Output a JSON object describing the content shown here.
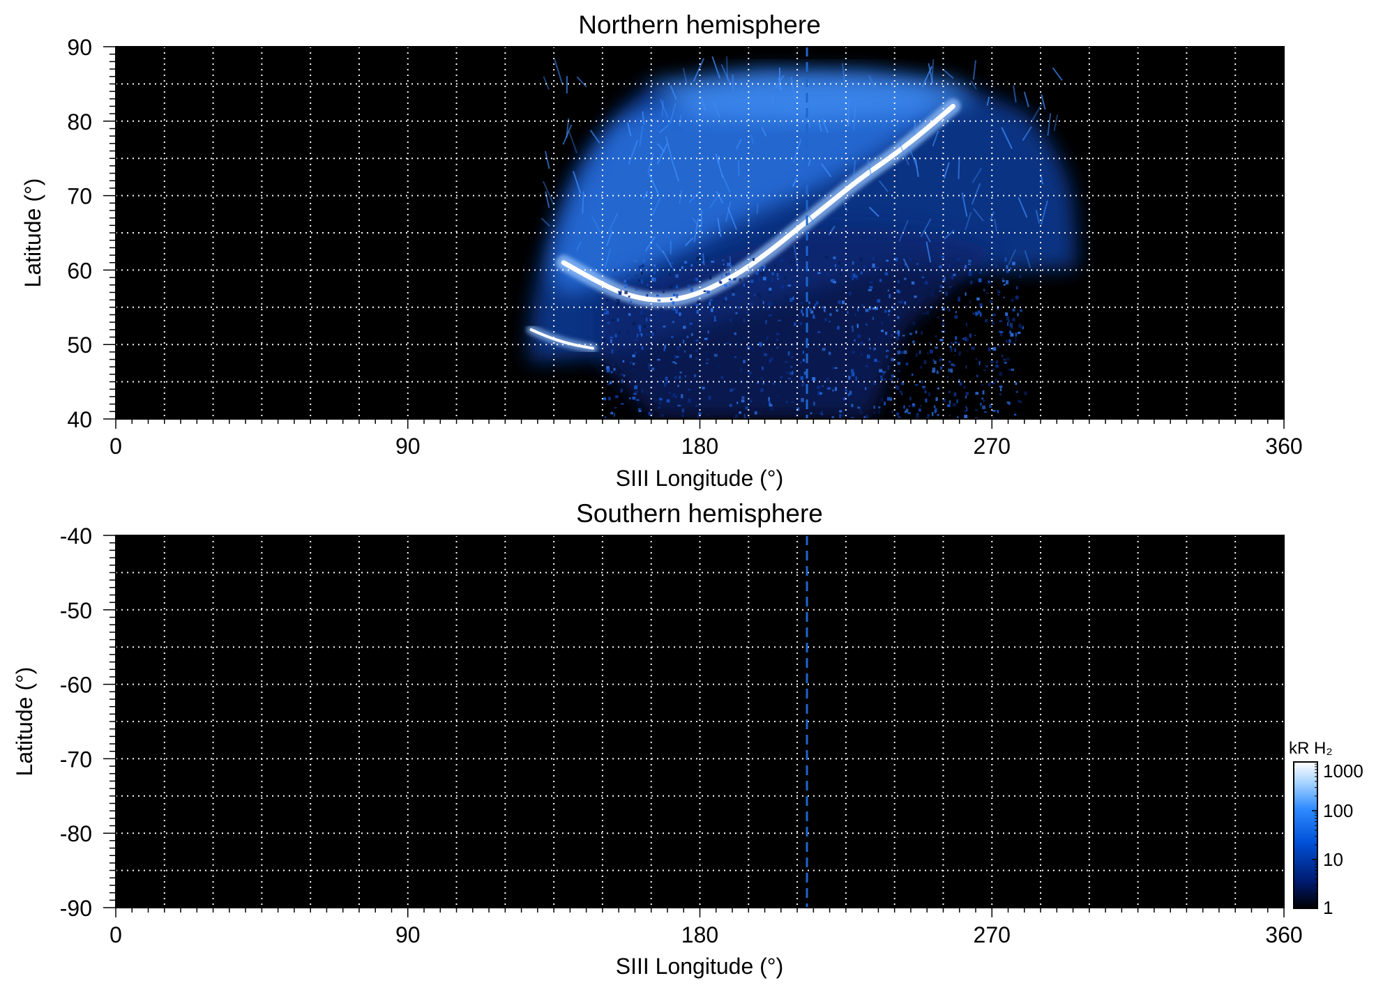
{
  "chart_data": [
    {
      "type": "heatmap",
      "title": "Northern hemisphere",
      "xlabel": "SIII Longitude (°)",
      "ylabel": "Latitude (°)",
      "xlim": [
        0,
        360
      ],
      "ylim": [
        40,
        90
      ],
      "xticks": [
        0,
        90,
        180,
        270,
        360
      ],
      "xtick_labels": [
        "0",
        "90",
        "180",
        "270",
        "360"
      ],
      "yticks": [
        90,
        80,
        70,
        60,
        50,
        40
      ],
      "ytick_labels": [
        "90",
        "80",
        "70",
        "60",
        "50",
        "40"
      ],
      "grid": true,
      "grid_x_step_deg": 15,
      "grid_y_step_deg": 5,
      "reference_line": {
        "type": "vertical-dashed",
        "x": 213,
        "color": "#1f66cc"
      },
      "coverage": {
        "description": "Polar-projected emission; region outside coverage is black",
        "lon_range": [
          127,
          295
        ],
        "lat_range": [
          40,
          87
        ]
      },
      "main_oval": [
        [
          128,
          52
        ],
        [
          132,
          51.2
        ],
        [
          138,
          50.3
        ],
        [
          143,
          49.8
        ],
        [
          147,
          49.5
        ],
        [
          138,
          61
        ],
        [
          148,
          58.5
        ],
        [
          158,
          56.5
        ],
        [
          168,
          55.8
        ],
        [
          178,
          56.5
        ],
        [
          190,
          59
        ],
        [
          200,
          62
        ],
        [
          210,
          65.5
        ],
        [
          220,
          69
        ],
        [
          230,
          72.5
        ],
        [
          240,
          75.5
        ],
        [
          250,
          79
        ],
        [
          258,
          82
        ]
      ],
      "background_color": "#000000"
    },
    {
      "type": "heatmap",
      "title": "Southern hemisphere",
      "xlabel": "SIII Longitude (°)",
      "ylabel": "Latitude (°)",
      "xlim": [
        0,
        360
      ],
      "ylim": [
        -90,
        -40
      ],
      "xticks": [
        0,
        90,
        180,
        270,
        360
      ],
      "xtick_labels": [
        "0",
        "90",
        "180",
        "270",
        "360"
      ],
      "yticks": [
        -40,
        -50,
        -60,
        -70,
        -80,
        -90
      ],
      "ytick_labels": [
        "-40",
        "-50",
        "-60",
        "-70",
        "-80",
        "-90"
      ],
      "grid": true,
      "grid_x_step_deg": 15,
      "grid_y_step_deg": 5,
      "reference_line": {
        "type": "vertical-dashed",
        "x": 213,
        "color": "#1f66cc"
      },
      "coverage": null,
      "background_color": "#000000"
    }
  ],
  "colorbar": {
    "label": "kR H₂",
    "scale": "log",
    "range": [
      1,
      1000
    ],
    "ticks": [
      1,
      10,
      100,
      1000
    ],
    "tick_labels": [
      "1",
      "10",
      "100",
      "1000"
    ],
    "colors": [
      "#000000",
      "#001a6e",
      "#0050d8",
      "#2f8bff",
      "#a8d4ff",
      "#ffffff"
    ]
  },
  "colors": {
    "grid": "#ffffff",
    "reference_line": "#1f66cc",
    "emission_low": "#003a9c",
    "emission_mid": "#1e7bff",
    "emission_high": "#ffffff"
  }
}
